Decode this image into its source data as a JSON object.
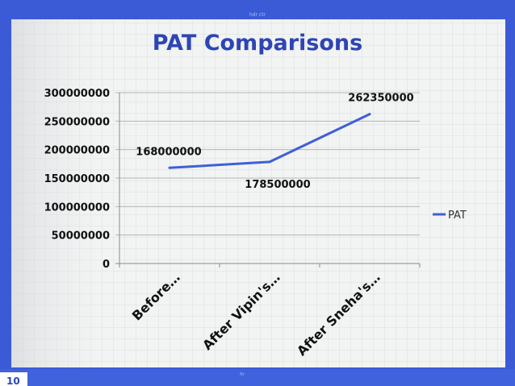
{
  "slide": {
    "page_number": "10",
    "top_bar_text": "hdr ctr",
    "bottom_bar_text": "ftr"
  },
  "colors": {
    "frame_blue": "#3b5bd6",
    "series_line": "#3f5fd8",
    "title_color": "#2d45b5",
    "grid": "#b5b5b5",
    "panel_bg": "#f1f3f4"
  },
  "chart_data": {
    "type": "line",
    "title": "PAT Comparisons",
    "categories": [
      "Before…",
      "After Vipin's…",
      "After Sneha's…"
    ],
    "series": [
      {
        "name": "PAT",
        "values": [
          168000000,
          178500000,
          262350000
        ]
      }
    ],
    "data_labels": [
      "168000000",
      "178500000",
      "262350000"
    ],
    "y_ticks": [
      "0",
      "50000000",
      "100000000",
      "150000000",
      "200000000",
      "250000000",
      "300000000"
    ],
    "ylim": [
      0,
      300000000
    ],
    "grid": true,
    "legend_position": "right"
  }
}
